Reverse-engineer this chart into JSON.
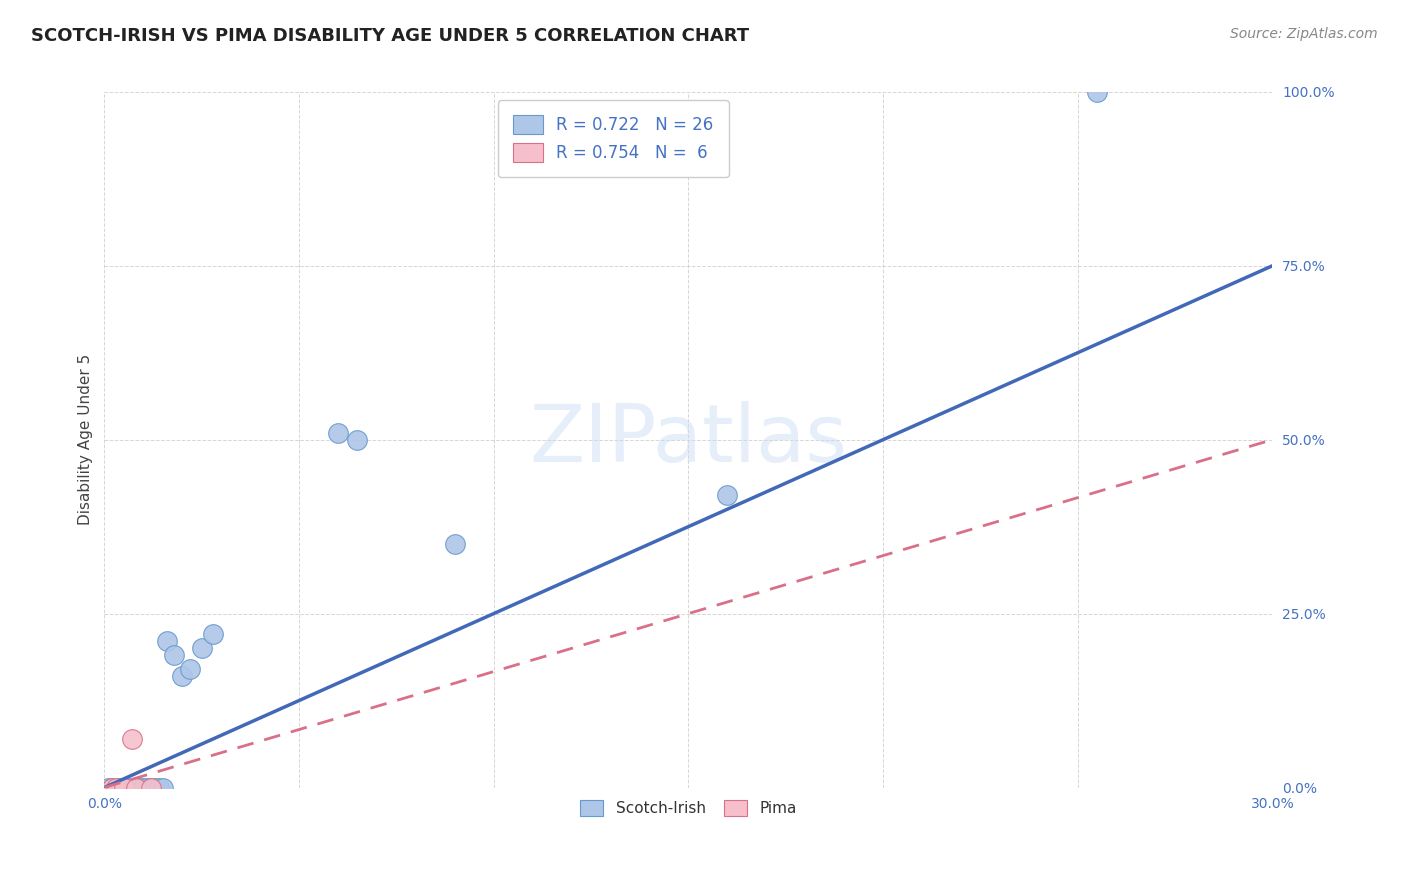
{
  "title": "SCOTCH-IRISH VS PIMA DISABILITY AGE UNDER 5 CORRELATION CHART",
  "source_text": "Source: ZipAtlas.com",
  "ylabel": "Disability Age Under 5",
  "xlim": [
    0.0,
    0.3
  ],
  "ylim": [
    0.0,
    1.0
  ],
  "ytick_labels": [
    "0.0%",
    "25.0%",
    "50.0%",
    "75.0%",
    "100.0%"
  ],
  "ytick_positions": [
    0.0,
    0.25,
    0.5,
    0.75,
    1.0
  ],
  "xtick_positions": [
    0.0,
    0.05,
    0.1,
    0.15,
    0.2,
    0.25,
    0.3
  ],
  "legend_R1": "0.722",
  "legend_N1": "26",
  "legend_R2": "0.754",
  "legend_N2": "6",
  "watermark": "ZIPatlas",
  "blue_fill": "#aec6e8",
  "blue_edge": "#6699cc",
  "pink_fill": "#f5c0cc",
  "pink_edge": "#d97088",
  "blue_line": "#4169b8",
  "pink_line": "#d97088",
  "grid_color": "#cccccc",
  "background_color": "#ffffff",
  "title_fontsize": 13,
  "axis_label_fontsize": 11,
  "tick_fontsize": 10,
  "legend_fontsize": 12,
  "source_fontsize": 10,
  "si_x": [
    0.001,
    0.002,
    0.003,
    0.004,
    0.005,
    0.006,
    0.007,
    0.008,
    0.009,
    0.01,
    0.011,
    0.012,
    0.013,
    0.014,
    0.015,
    0.016,
    0.018,
    0.02,
    0.022,
    0.025,
    0.028,
    0.06,
    0.065,
    0.09,
    0.16,
    0.255
  ],
  "si_y": [
    0.0,
    0.0,
    0.0,
    0.0,
    0.0,
    0.0,
    0.0,
    0.0,
    0.0,
    0.0,
    0.0,
    0.0,
    0.0,
    0.0,
    0.0,
    0.21,
    0.19,
    0.16,
    0.17,
    0.2,
    0.22,
    0.51,
    0.5,
    0.35,
    0.42,
    1.0
  ],
  "pi_x": [
    0.002,
    0.003,
    0.005,
    0.007,
    0.008,
    0.012
  ],
  "pi_y": [
    0.0,
    0.0,
    0.0,
    0.07,
    0.0,
    0.0
  ],
  "si_line_x": [
    0.0,
    0.3
  ],
  "si_line_y": [
    0.0,
    0.75
  ],
  "pi_line_x": [
    0.0,
    0.3
  ],
  "pi_line_y": [
    0.0,
    0.5
  ]
}
